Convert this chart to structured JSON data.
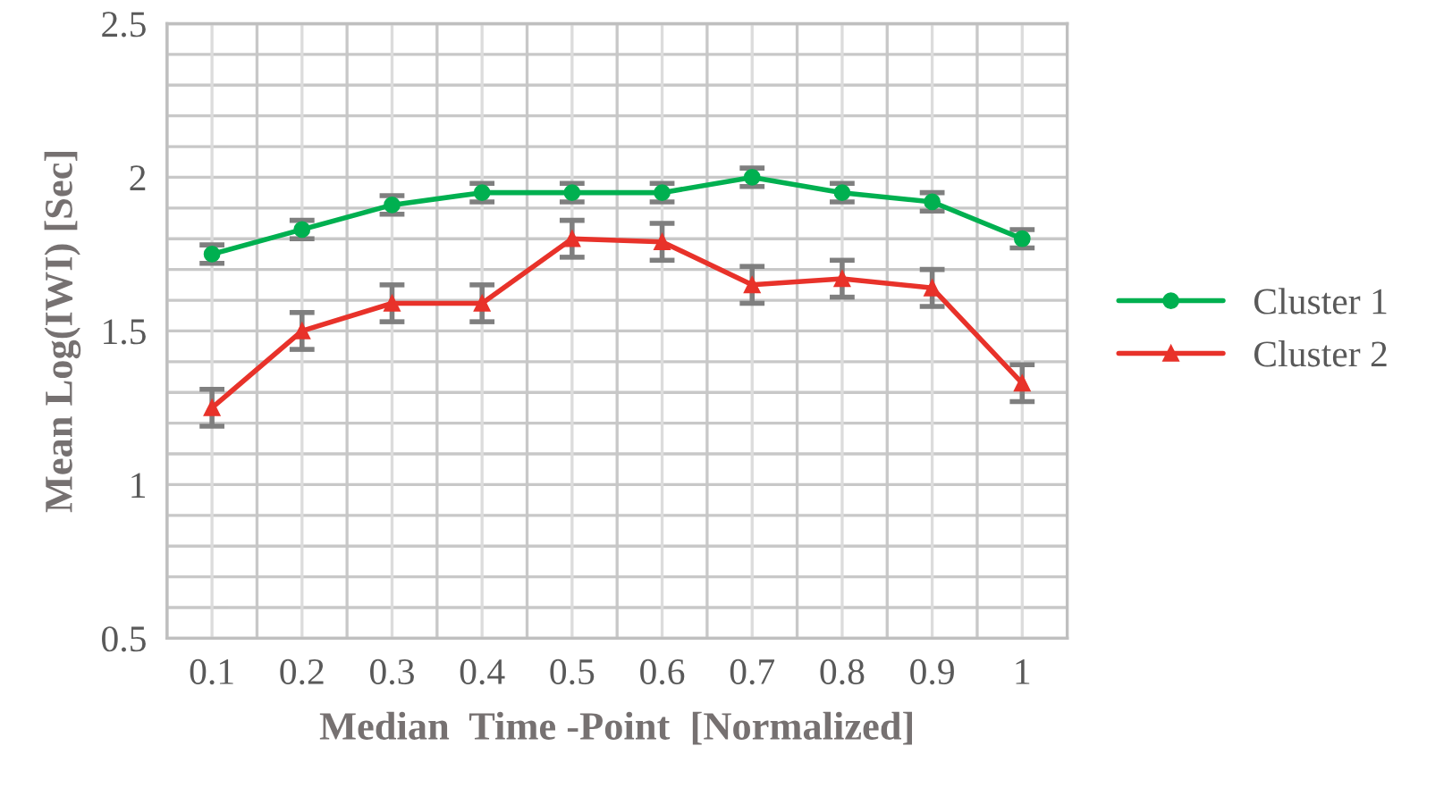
{
  "chart_data": {
    "type": "line",
    "xlabel": "Median  Time -Point  [Normalized]",
    "ylabel": "Mean Log(IWI) [Sec]",
    "categories": [
      "0.1",
      "0.2",
      "0.3",
      "0.4",
      "0.5",
      "0.6",
      "0.7",
      "0.8",
      "0.9",
      "1"
    ],
    "series": [
      {
        "name": "Cluster 1",
        "color": "#00b050",
        "marker": "circle",
        "values": [
          1.75,
          1.83,
          1.91,
          1.95,
          1.95,
          1.95,
          2.0,
          1.95,
          1.92,
          1.8
        ],
        "errors": [
          0.03,
          0.03,
          0.03,
          0.03,
          0.03,
          0.03,
          0.03,
          0.03,
          0.03,
          0.03
        ]
      },
      {
        "name": "Cluster 2",
        "color": "#e8322a",
        "marker": "triangle",
        "values": [
          1.25,
          1.5,
          1.59,
          1.59,
          1.8,
          1.79,
          1.65,
          1.67,
          1.64,
          1.33
        ],
        "errors": [
          0.06,
          0.06,
          0.06,
          0.06,
          0.06,
          0.06,
          0.06,
          0.06,
          0.06,
          0.06
        ]
      }
    ],
    "ylim": [
      0.5,
      2.5
    ],
    "yticks": [
      0.5,
      1,
      1.5,
      2,
      2.5
    ],
    "grid": true,
    "legend": "right",
    "line_style": "solid"
  }
}
